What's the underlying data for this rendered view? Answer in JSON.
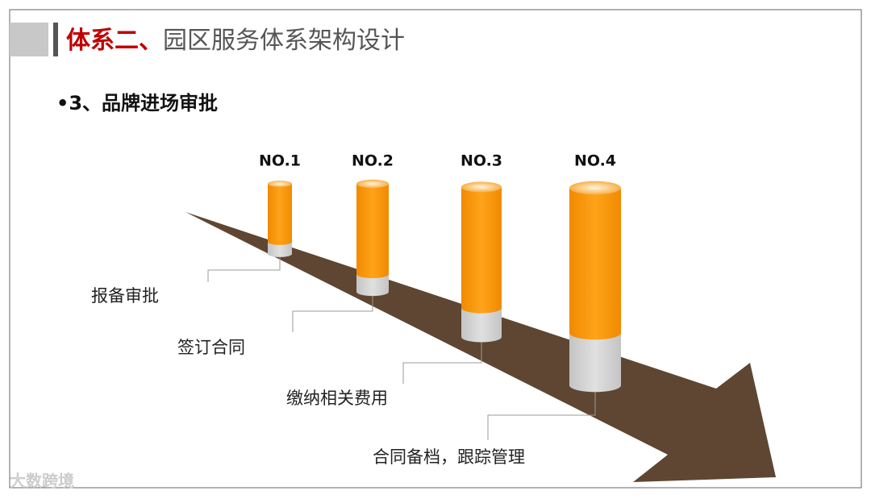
{
  "header": {
    "title_lead": "体系二、",
    "title_rest": "园区服务体系架构设计"
  },
  "subtitle": "•3、品牌进场审批",
  "steps": [
    {
      "label": "NO.1",
      "text": "报备审批"
    },
    {
      "label": "NO.2",
      "text": "签订合同"
    },
    {
      "label": "NO.3",
      "text": "缴纳相关费用"
    },
    {
      "label": "NO.4",
      "text": "合同备档，跟踪管理"
    }
  ],
  "watermark": "大数跨境"
}
